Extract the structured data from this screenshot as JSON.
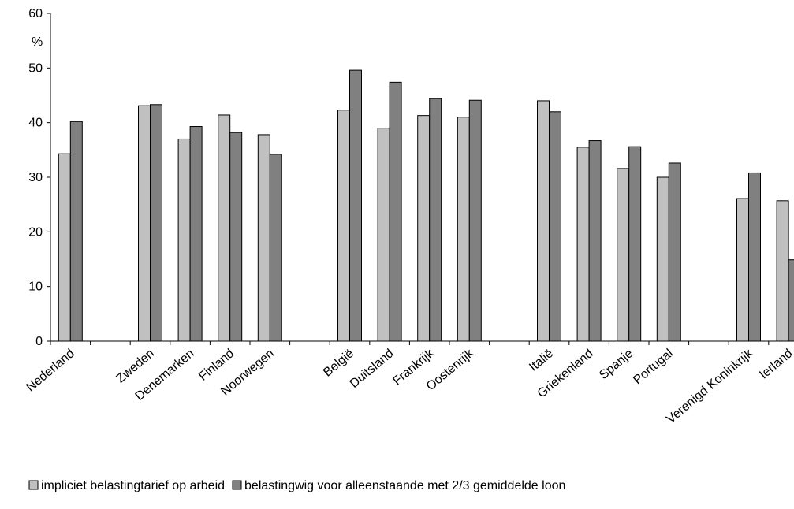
{
  "chart_data": {
    "type": "bar",
    "unit": "%",
    "ylim": [
      0,
      60
    ],
    "yticks": [
      0,
      10,
      20,
      30,
      40,
      50,
      60
    ],
    "grid": false,
    "legend_placement": "bottom",
    "categories": [
      "Nederland",
      "",
      "Zweden",
      "Denemarken",
      "Finland",
      "Noorwegen",
      "",
      "België",
      "Duitsland",
      "Frankrijk",
      "Oostenrijk",
      "",
      "Italië",
      "Griekenland",
      "Spanje",
      "Portugal",
      "",
      "Verenigd Koninkrijk",
      "Ierland"
    ],
    "series": [
      {
        "name": "impliciet belastingtarief op arbeid",
        "color": "#c0c0c0",
        "values": [
          34.3,
          null,
          43.1,
          37.0,
          41.4,
          37.8,
          null,
          42.3,
          39.0,
          41.3,
          41.0,
          null,
          44.0,
          35.5,
          31.6,
          30.0,
          null,
          26.1,
          25.7
        ]
      },
      {
        "name": "belastingwig voor alleenstaande met 2/3 gemiddelde loon",
        "color": "#808080",
        "values": [
          40.2,
          null,
          43.3,
          39.3,
          38.2,
          34.2,
          null,
          49.6,
          47.4,
          44.4,
          44.1,
          null,
          42.0,
          36.7,
          35.6,
          32.6,
          null,
          30.8,
          14.9
        ]
      }
    ]
  }
}
